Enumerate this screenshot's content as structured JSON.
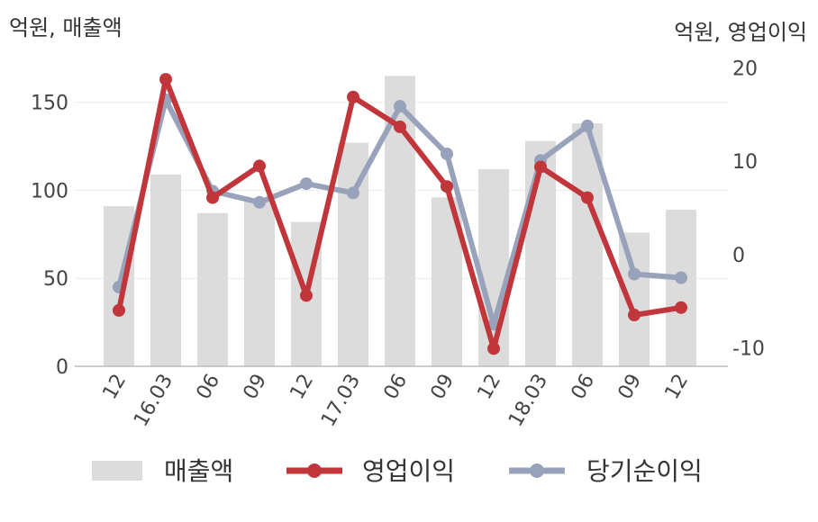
{
  "chart_data": {
    "type": "bar",
    "left_axis_title": "억원, 매출액",
    "right_axis_title": "억원, 영업이익",
    "categories": [
      "12",
      "16.03",
      "06",
      "09",
      "12",
      "17.03",
      "06",
      "09",
      "12",
      "18.03",
      "06",
      "09",
      "12"
    ],
    "left_axis": {
      "ylim": [
        0,
        180
      ],
      "ticks": [
        0,
        50,
        100,
        150
      ]
    },
    "right_axis": {
      "ylim": [
        -12,
        22
      ],
      "ticks": [
        -10,
        0,
        10,
        20
      ]
    },
    "grid": true,
    "legend_position": "bottom",
    "series": [
      {
        "name": "매출액",
        "type": "bar",
        "axis": "left",
        "color": "#dcdcdc",
        "values": [
          91,
          109,
          87,
          94,
          82,
          127,
          165,
          96,
          112,
          128,
          138,
          76,
          89
        ]
      },
      {
        "name": "영업이익",
        "type": "line",
        "axis": "right",
        "color": "#c0363a",
        "values": [
          -6.0,
          18.8,
          6.1,
          9.5,
          -4.4,
          16.9,
          13.7,
          7.3,
          -10.1,
          9.4,
          6.1,
          -6.5,
          -5.7
        ]
      },
      {
        "name": "당기순이익",
        "type": "line",
        "axis": "right",
        "color": "#98a3bb",
        "values": [
          -3.5,
          16.6,
          6.8,
          5.6,
          7.6,
          6.6,
          15.9,
          10.8,
          -7.5,
          10.1,
          13.8,
          -2.1,
          -2.5
        ]
      }
    ]
  }
}
